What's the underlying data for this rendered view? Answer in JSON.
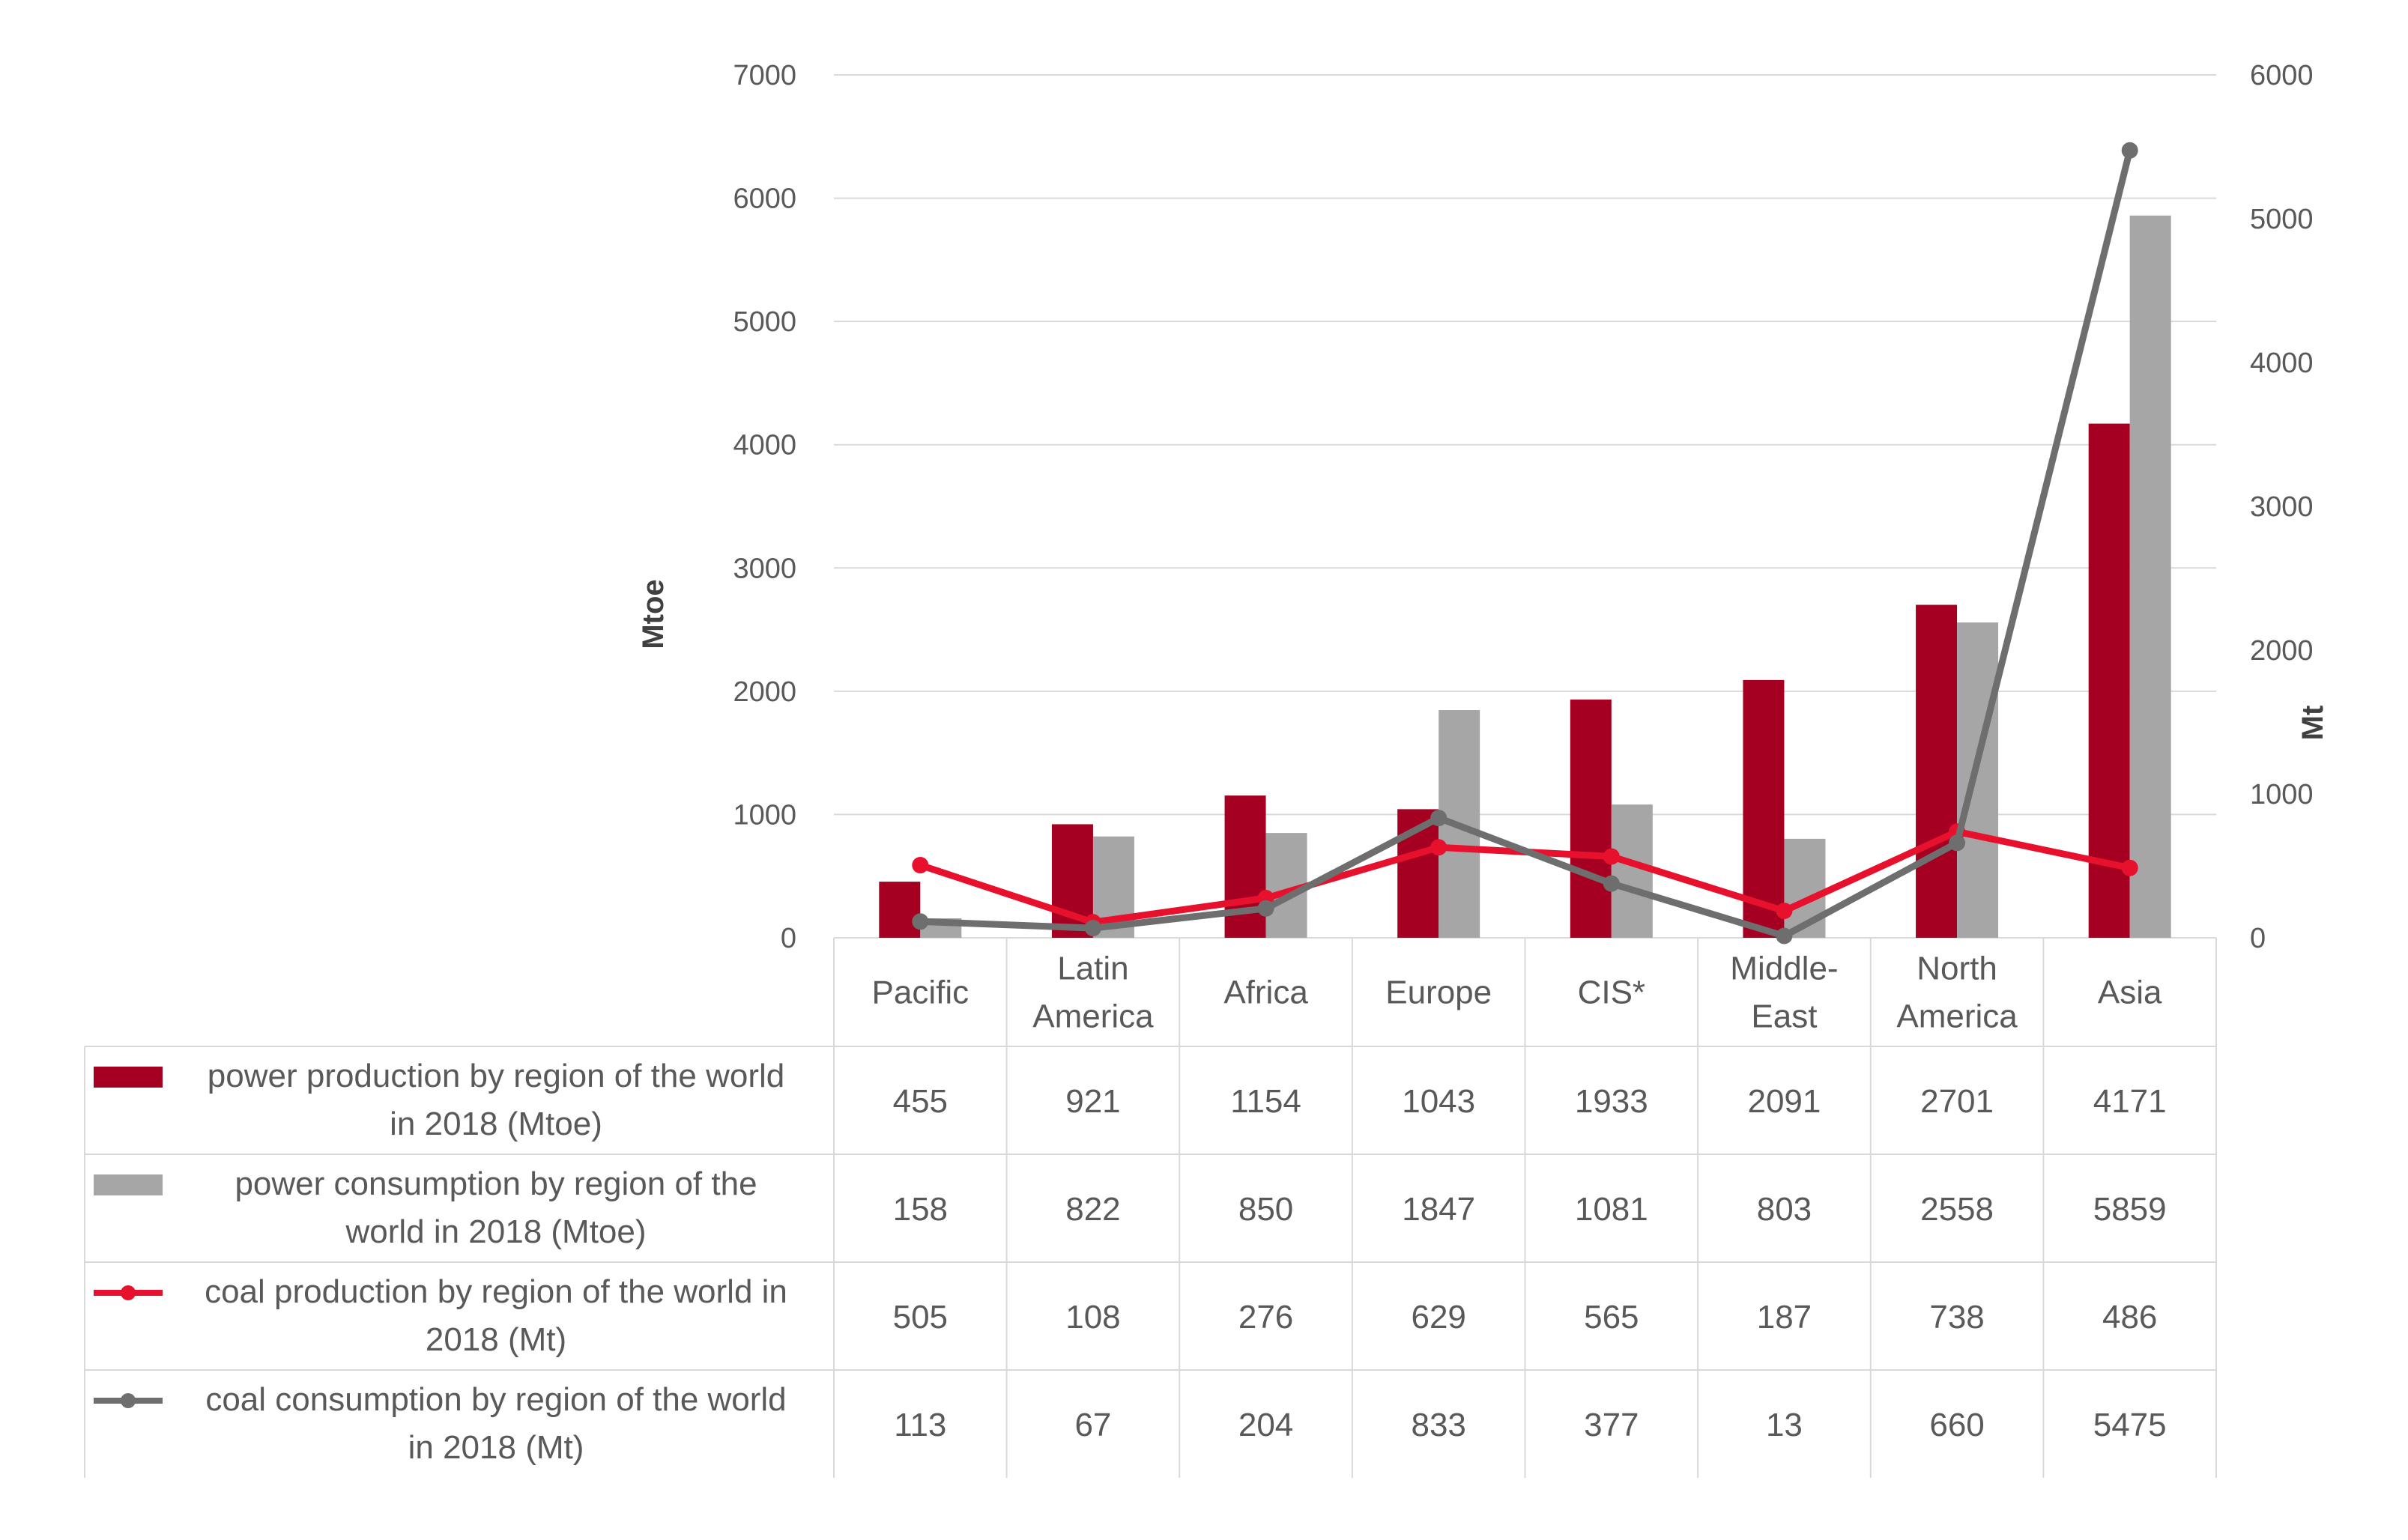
{
  "chart_data": {
    "type": "bar",
    "title": "",
    "categories": [
      [
        "Pacific"
      ],
      [
        "Latin",
        "America"
      ],
      [
        "Africa"
      ],
      [
        "Europe"
      ],
      [
        "CIS*"
      ],
      [
        "Middle-",
        "East"
      ],
      [
        "North",
        "America"
      ],
      [
        "Asia"
      ]
    ],
    "series": [
      {
        "name_lines": [
          "power production by region of the world",
          "in 2018 (Mtoe)"
        ],
        "type": "bar",
        "axis": "left",
        "color": "#A50021",
        "values": [
          455,
          921,
          1154,
          1043,
          1933,
          2091,
          2701,
          4171
        ]
      },
      {
        "name_lines": [
          "power consumption by region of the",
          "world in 2018 (Mtoe)"
        ],
        "type": "bar",
        "axis": "left",
        "color": "#A6A6A6",
        "values": [
          158,
          822,
          850,
          1847,
          1081,
          803,
          2558,
          5859
        ]
      },
      {
        "name_lines": [
          "coal production by region of the world in",
          "2018 (Mt)"
        ],
        "type": "line",
        "axis": "right",
        "color": "#E8112D",
        "values": [
          505,
          108,
          276,
          629,
          565,
          187,
          738,
          486
        ]
      },
      {
        "name_lines": [
          "coal consumption by region of the world",
          "in 2018 (Mt)"
        ],
        "type": "line",
        "axis": "right",
        "color": "#6E6E6E",
        "values": [
          113,
          67,
          204,
          833,
          377,
          13,
          660,
          5475
        ]
      }
    ],
    "y_left": {
      "label": "Mtoe",
      "min": 0,
      "max": 7000,
      "step": 1000
    },
    "y_right": {
      "label": "Mt",
      "min": 0,
      "max": 6000,
      "step": 1000
    },
    "grid": true,
    "legend": "data-table"
  }
}
